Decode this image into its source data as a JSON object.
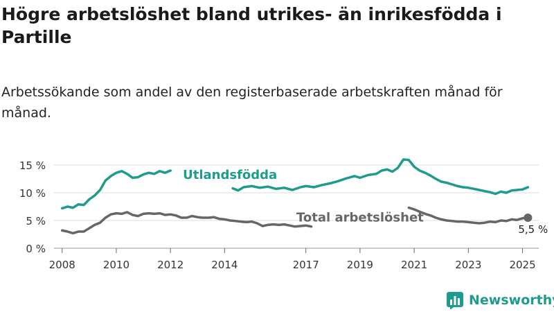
{
  "title": "Högre arbetslöshet bland utrikes- än inrikesfödda i Partille",
  "subtitle": "Arbetssökande som andel av den registerbaserade arbetskraften månad för månad.",
  "brand": {
    "name": "Newsworthy",
    "logo_icon": "newsworthy-logo-icon",
    "color": "#1e9b8c"
  },
  "chart_data": {
    "type": "line",
    "title": "Högre arbetslöshet bland utrikes- än inrikesfödda i Partille",
    "subtitle": "Arbetssökande som andel av den registerbaserade arbetskraften månad för månad.",
    "xlabel": "",
    "ylabel": "",
    "xlim": [
      2007.7,
      2025.6
    ],
    "ylim": [
      0,
      15
    ],
    "x_ticks": [
      2008,
      2010,
      2012,
      2014,
      2017,
      2019,
      2021,
      2023,
      2025
    ],
    "x_tick_labels": [
      "2008",
      "2010",
      "2012",
      "2014",
      "2017",
      "2019",
      "2021",
      "2023",
      "2025"
    ],
    "y_ticks": [
      0,
      5,
      10,
      15
    ],
    "y_tick_labels": [
      "0 %",
      "5 %",
      "10 %",
      "15 %"
    ],
    "grid": "horizontal",
    "legend": "none",
    "series": [
      {
        "name": "Utlandsfödda",
        "color": "#1e9b8c",
        "points": [
          [
            2008.0,
            7.2
          ],
          [
            2008.2,
            7.5
          ],
          [
            2008.4,
            7.3
          ],
          [
            2008.6,
            7.9
          ],
          [
            2008.8,
            7.8
          ],
          [
            2009.0,
            8.8
          ],
          [
            2009.2,
            9.5
          ],
          [
            2009.4,
            10.5
          ],
          [
            2009.6,
            12.2
          ],
          [
            2009.8,
            13.0
          ],
          [
            2010.0,
            13.6
          ],
          [
            2010.2,
            13.9
          ],
          [
            2010.4,
            13.4
          ],
          [
            2010.6,
            12.7
          ],
          [
            2010.8,
            12.8
          ],
          [
            2011.0,
            13.3
          ],
          [
            2011.2,
            13.6
          ],
          [
            2011.4,
            13.4
          ],
          [
            2011.6,
            13.9
          ],
          [
            2011.8,
            13.6
          ],
          [
            2012.0,
            14.0
          ],
          [
            2014.3,
            10.8
          ],
          [
            2014.5,
            10.4
          ],
          [
            2014.7,
            11.0
          ],
          [
            2015.0,
            11.2
          ],
          [
            2015.3,
            10.9
          ],
          [
            2015.6,
            11.1
          ],
          [
            2015.9,
            10.7
          ],
          [
            2016.2,
            10.9
          ],
          [
            2016.5,
            10.5
          ],
          [
            2016.8,
            11.0
          ],
          [
            2017.0,
            11.2
          ],
          [
            2017.3,
            11.0
          ],
          [
            2017.6,
            11.4
          ],
          [
            2017.9,
            11.7
          ],
          [
            2018.2,
            12.1
          ],
          [
            2018.5,
            12.6
          ],
          [
            2018.8,
            13.0
          ],
          [
            2019.0,
            12.7
          ],
          [
            2019.3,
            13.2
          ],
          [
            2019.6,
            13.4
          ],
          [
            2019.8,
            14.0
          ],
          [
            2020.0,
            14.2
          ],
          [
            2020.2,
            13.8
          ],
          [
            2020.4,
            14.5
          ],
          [
            2020.6,
            16.0
          ],
          [
            2020.8,
            15.9
          ],
          [
            2021.0,
            14.7
          ],
          [
            2021.2,
            14.0
          ],
          [
            2021.4,
            13.6
          ],
          [
            2021.6,
            13.1
          ],
          [
            2021.8,
            12.5
          ],
          [
            2022.0,
            12.0
          ],
          [
            2022.2,
            11.8
          ],
          [
            2022.4,
            11.5
          ],
          [
            2022.6,
            11.2
          ],
          [
            2022.8,
            11.0
          ],
          [
            2023.0,
            10.9
          ],
          [
            2023.2,
            10.7
          ],
          [
            2023.4,
            10.5
          ],
          [
            2023.6,
            10.3
          ],
          [
            2023.8,
            10.1
          ],
          [
            2024.0,
            9.8
          ],
          [
            2024.2,
            10.2
          ],
          [
            2024.4,
            10.0
          ],
          [
            2024.6,
            10.4
          ],
          [
            2024.8,
            10.5
          ],
          [
            2025.0,
            10.6
          ],
          [
            2025.2,
            11.0
          ]
        ]
      },
      {
        "name": "Total arbetslöshet",
        "color": "#666666",
        "points": [
          [
            2008.0,
            3.2
          ],
          [
            2008.2,
            3.0
          ],
          [
            2008.4,
            2.7
          ],
          [
            2008.6,
            3.0
          ],
          [
            2008.8,
            3.0
          ],
          [
            2009.0,
            3.6
          ],
          [
            2009.2,
            4.2
          ],
          [
            2009.4,
            4.6
          ],
          [
            2009.6,
            5.5
          ],
          [
            2009.8,
            6.1
          ],
          [
            2010.0,
            6.3
          ],
          [
            2010.2,
            6.2
          ],
          [
            2010.4,
            6.5
          ],
          [
            2010.6,
            6.0
          ],
          [
            2010.8,
            5.8
          ],
          [
            2011.0,
            6.2
          ],
          [
            2011.2,
            6.3
          ],
          [
            2011.4,
            6.2
          ],
          [
            2011.6,
            6.3
          ],
          [
            2011.8,
            6.0
          ],
          [
            2012.0,
            6.1
          ],
          [
            2012.2,
            5.9
          ],
          [
            2012.4,
            5.5
          ],
          [
            2012.6,
            5.5
          ],
          [
            2012.8,
            5.8
          ],
          [
            2013.0,
            5.6
          ],
          [
            2013.2,
            5.5
          ],
          [
            2013.4,
            5.5
          ],
          [
            2013.6,
            5.6
          ],
          [
            2013.8,
            5.3
          ],
          [
            2014.0,
            5.2
          ],
          [
            2014.2,
            5.0
          ],
          [
            2014.4,
            4.9
          ],
          [
            2014.6,
            4.8
          ],
          [
            2014.8,
            4.7
          ],
          [
            2015.0,
            4.8
          ],
          [
            2015.2,
            4.5
          ],
          [
            2015.4,
            4.0
          ],
          [
            2015.6,
            4.2
          ],
          [
            2015.8,
            4.3
          ],
          [
            2016.0,
            4.2
          ],
          [
            2016.2,
            4.3
          ],
          [
            2016.4,
            4.1
          ],
          [
            2016.6,
            3.9
          ],
          [
            2016.8,
            4.0
          ],
          [
            2017.0,
            4.1
          ],
          [
            2017.2,
            3.9
          ],
          [
            2020.8,
            7.3
          ],
          [
            2021.0,
            7.0
          ],
          [
            2021.2,
            6.6
          ],
          [
            2021.4,
            6.2
          ],
          [
            2021.6,
            5.9
          ],
          [
            2021.8,
            5.5
          ],
          [
            2022.0,
            5.2
          ],
          [
            2022.2,
            5.0
          ],
          [
            2022.4,
            4.9
          ],
          [
            2022.6,
            4.8
          ],
          [
            2022.8,
            4.8
          ],
          [
            2023.0,
            4.7
          ],
          [
            2023.2,
            4.6
          ],
          [
            2023.4,
            4.5
          ],
          [
            2023.6,
            4.6
          ],
          [
            2023.8,
            4.8
          ],
          [
            2024.0,
            4.7
          ],
          [
            2024.2,
            5.0
          ],
          [
            2024.4,
            4.9
          ],
          [
            2024.6,
            5.2
          ],
          [
            2024.8,
            5.1
          ],
          [
            2025.0,
            5.4
          ],
          [
            2025.2,
            5.5
          ]
        ]
      }
    ],
    "annotations": [
      {
        "text": "Utlandsfödda",
        "series": "Utlandsfödda",
        "x": 2014.2,
        "y": 12.5
      },
      {
        "text": "Total arbetslöshet",
        "series": "Total arbetslöshet",
        "x": 2019.0,
        "y": 4.8
      },
      {
        "text": "5,5 %",
        "series": "Total arbetslöshet",
        "x": 2025.2,
        "y": 5.5
      }
    ]
  }
}
